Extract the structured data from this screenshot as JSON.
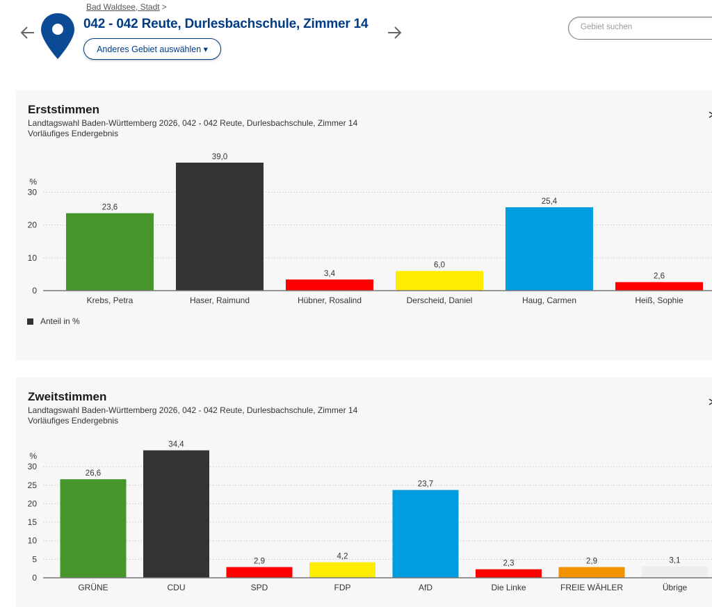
{
  "header": {
    "breadcrumb": {
      "parent_label": "Bad Waldsee, Stadt",
      "separator": ">"
    },
    "title": "042 - 042 Reute, Durlesbachschule, Zimmer 14",
    "select_area_button": "Anderes Gebiet auswählen ▾",
    "prev_icon": "arrow-left-icon",
    "next_icon": "arrow-right-icon",
    "location_icon": "map-pin-icon",
    "search": {
      "placeholder": "Gebiet suchen",
      "value": ""
    },
    "colors": {
      "brand": "#003b85"
    }
  },
  "panels": {
    "erststimmen": {
      "title": "Erststimmen",
      "subtitle": "Landtagswahl Baden-Württemberg 2026, 042 - 042 Reute, Durlesbachschule, Zimmer 14",
      "status": "Vorläufiges Endergebnis",
      "legend_label": "Anteil in %",
      "menu_icon": "chart-menu-icon"
    },
    "zweitstimmen": {
      "title": "Zweitstimmen",
      "subtitle": "Landtagswahl Baden-Württemberg 2026, 042 - 042 Reute, Durlesbachschule, Zimmer 14",
      "status": "Vorläufiges Endergebnis",
      "menu_icon": "chart-menu-icon"
    }
  },
  "chart_data": [
    {
      "type": "bar",
      "title": "Erststimmen",
      "subtitle": "Landtagswahl Baden-Württemberg 2026, 042 - 042 Reute, Durlesbachschule, Zimmer 14",
      "xlabel": "",
      "ylabel": "%",
      "ylim": [
        0,
        40
      ],
      "yticks": [
        0,
        10,
        20,
        30
      ],
      "grid": true,
      "legend": {
        "entries": [
          "Anteil in %"
        ],
        "placement": "bottom-left"
      },
      "categories": [
        "Krebs, Petra",
        "Haser, Raimund",
        "Hübner, Rosalind",
        "Derscheid, Daniel",
        "Haug, Carmen",
        "Heiß, Sophie"
      ],
      "values": [
        23.6,
        39.0,
        3.4,
        6.0,
        25.4,
        2.6
      ],
      "labels": [
        "23,6",
        "39,0",
        "3,4",
        "6,0",
        "25,4",
        "2,6"
      ],
      "colors": [
        "#46962b",
        "#333333",
        "#ff0000",
        "#ffed00",
        "#009ee0",
        "#ff0000"
      ]
    },
    {
      "type": "bar",
      "title": "Zweitstimmen",
      "subtitle": "Landtagswahl Baden-Württemberg 2026, 042 - 042 Reute, Durlesbachschule, Zimmer 14",
      "xlabel": "",
      "ylabel": "%",
      "ylim": [
        0,
        35
      ],
      "yticks": [
        0,
        5,
        10,
        15,
        20,
        25,
        30
      ],
      "grid": true,
      "categories": [
        "GRÜNE",
        "CDU",
        "SPD",
        "FDP",
        "AfD",
        "Die Linke",
        "FREIE WÄHLER",
        "Übrige"
      ],
      "values": [
        26.6,
        34.4,
        2.9,
        4.2,
        23.7,
        2.3,
        2.9,
        3.1
      ],
      "labels": [
        "26,6",
        "34,4",
        "2,9",
        "4,2",
        "23,7",
        "2,3",
        "2,9",
        "3,1"
      ],
      "colors": [
        "#46962b",
        "#333333",
        "#ff0000",
        "#ffed00",
        "#009ee0",
        "#ff0000",
        "#f39200",
        "#eeeeee"
      ]
    }
  ]
}
